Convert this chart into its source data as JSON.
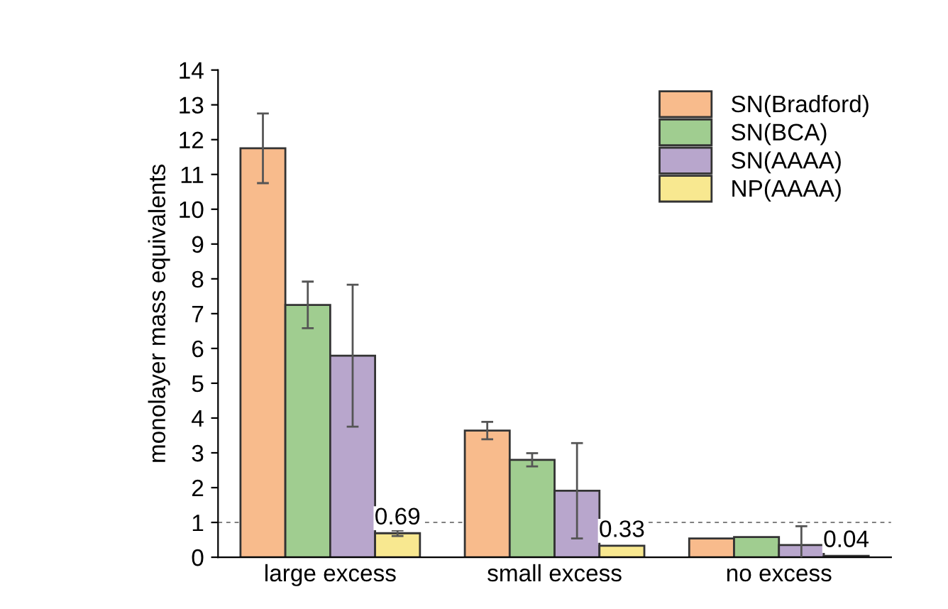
{
  "chart_data": {
    "type": "bar",
    "ylabel": "monolayer mass equivalents",
    "categories": [
      "large excess",
      "small excess",
      "no excess"
    ],
    "ylim": [
      0,
      14
    ],
    "yticks": [
      0,
      1,
      2,
      3,
      4,
      5,
      6,
      7,
      8,
      9,
      10,
      11,
      12,
      13,
      14
    ],
    "grid": false,
    "legend": "top right",
    "ref_lines": [
      {
        "axis": "y",
        "value": 1,
        "color": "#808080",
        "line_style": "dashed"
      }
    ],
    "series": [
      {
        "name": "SN(Bradford)",
        "color": "#f8bb8c",
        "values": [
          11.75,
          3.64,
          0.54
        ],
        "errors": [
          1.0,
          0.25,
          null
        ]
      },
      {
        "name": "SN(BCA)",
        "color": "#a0cd90",
        "values": [
          7.25,
          2.8,
          0.58
        ],
        "errors": [
          0.67,
          0.19,
          null
        ]
      },
      {
        "name": "SN(AAAA)",
        "color": "#b8a6cc",
        "values": [
          5.79,
          1.91,
          0.35
        ],
        "errors": [
          2.04,
          1.37,
          0.54
        ]
      },
      {
        "name": "NP(AAAA)",
        "color": "#f8e890",
        "values": [
          0.69,
          0.33,
          0.04
        ],
        "errors": [
          0.08,
          null,
          null
        ],
        "value_labels": [
          "0.69",
          "0.33",
          "0.04"
        ]
      }
    ]
  }
}
